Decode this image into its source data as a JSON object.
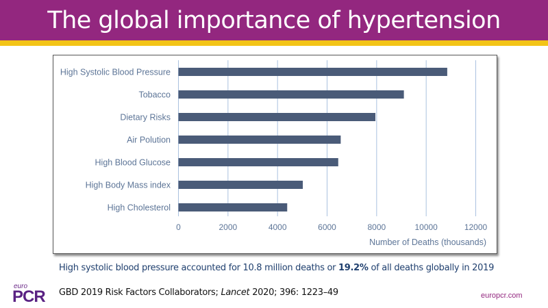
{
  "header": {
    "title": "The global importance of hypertension"
  },
  "colors": {
    "title_bar": "#93277f",
    "accent_bar": "#f3c417",
    "bar": "#4a5b78",
    "grid": "#a9c1df",
    "label": "#5d7597"
  },
  "chart_data": {
    "type": "bar",
    "orientation": "horizontal",
    "title": "",
    "categories": [
      "High Systolic Blood Pressure",
      "Tobacco",
      "Dietary Risks",
      "Air Polution",
      "High Blood Glucose",
      "High Body Mass index",
      "High Cholesterol"
    ],
    "values": [
      10850,
      9100,
      7950,
      6550,
      6450,
      5020,
      4390
    ],
    "xlabel": "Number of Deaths (thousands)",
    "ylabel": "",
    "xlim": [
      0,
      12000
    ],
    "xticks": [
      "0",
      "2000",
      "4000",
      "6000",
      "8000",
      "10000",
      "12000"
    ],
    "grid": "vertical",
    "legend": "none"
  },
  "caption": {
    "before": "High systolic blood pressure accounted for 10.8 million deaths or ",
    "bold": "19.2%",
    "after": " of all deaths globally in 2019"
  },
  "citation": {
    "before": "GBD 2019 Risk Factors Collaborators; ",
    "italic": "Lancet",
    "after": " 2020; 396: 1223–49"
  },
  "footer": {
    "logo_small": "euro",
    "logo_main": "PCR",
    "website": "europcr.com"
  }
}
